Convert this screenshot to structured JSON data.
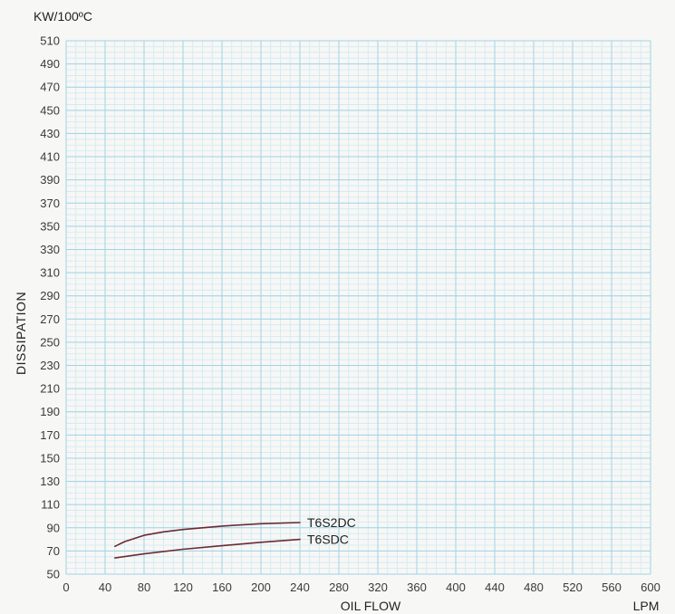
{
  "chart_data": {
    "type": "line",
    "title": "",
    "xlabel": "OIL FLOW",
    "xunit": "LPM",
    "ylabel": "DISSIPATION",
    "yunit": "KW/100ºC",
    "xlim": [
      0,
      600
    ],
    "ylim": [
      50,
      510
    ],
    "xticks": [
      0,
      40,
      80,
      120,
      160,
      200,
      240,
      280,
      320,
      360,
      400,
      440,
      480,
      520,
      560,
      600
    ],
    "yticks": [
      50,
      70,
      90,
      110,
      130,
      150,
      170,
      190,
      210,
      230,
      250,
      270,
      290,
      310,
      330,
      350,
      370,
      390,
      410,
      430,
      450,
      470,
      490,
      510
    ],
    "grid": true,
    "grid_minor_step": {
      "x": 10,
      "y": 5
    },
    "line_color": "#6b2a34",
    "grid_major_color": "#9fd3e8",
    "grid_minor_color": "#cfe9f3",
    "series": [
      {
        "name": "T6S2DC",
        "x": [
          50,
          60,
          80,
          100,
          120,
          160,
          200,
          240
        ],
        "y": [
          74,
          78,
          83.5,
          86.5,
          88.5,
          91.5,
          93.5,
          94.5
        ]
      },
      {
        "name": "T6SDC",
        "x": [
          50,
          80,
          120,
          160,
          200,
          240
        ],
        "y": [
          64,
          67.5,
          71.5,
          74.5,
          77.5,
          80
        ]
      }
    ]
  }
}
